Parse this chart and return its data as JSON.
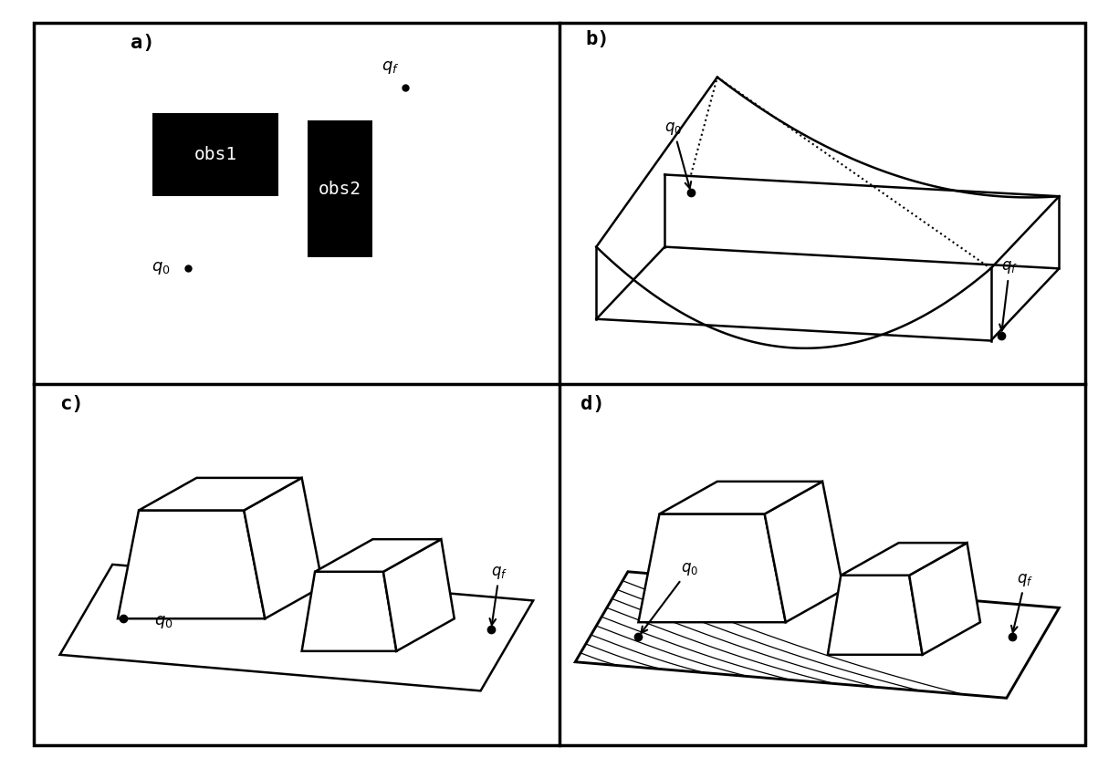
{
  "bg_color": "#ffffff",
  "panel_labels": [
    "a)",
    "b)",
    "c)",
    "d)"
  ],
  "obs1_text": "obs1",
  "obs2_text": "obs2",
  "lw": 1.8,
  "lw_thin": 0.9
}
